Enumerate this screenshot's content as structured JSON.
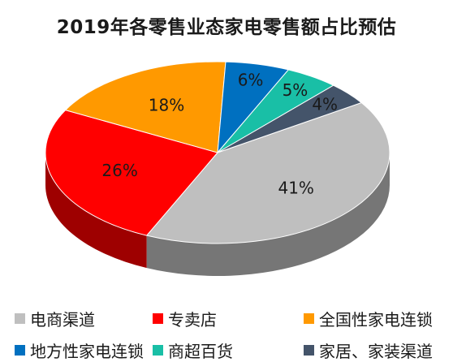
{
  "chart_data": {
    "type": "pie",
    "title": "2019年各零售业态家电零售额占比预估",
    "slices": [
      {
        "name": "电商渠道",
        "value": 41,
        "label": "41%",
        "color": "#bfbfbf"
      },
      {
        "name": "专卖店",
        "value": 26,
        "label": "26%",
        "color": "#ff0000"
      },
      {
        "name": "全国性家电连锁",
        "value": 18,
        "label": "18%",
        "color": "#ff9900"
      },
      {
        "name": "地方性家电连锁",
        "value": 6,
        "label": "6%",
        "color": "#0070c0"
      },
      {
        "name": "商超百货",
        "value": 5,
        "label": "5%",
        "color": "#19bfa6"
      },
      {
        "name": "家居、家装渠道",
        "value": 4,
        "label": "4%",
        "color": "#44546a"
      }
    ],
    "legend_position": "bottom",
    "style": "3d"
  }
}
